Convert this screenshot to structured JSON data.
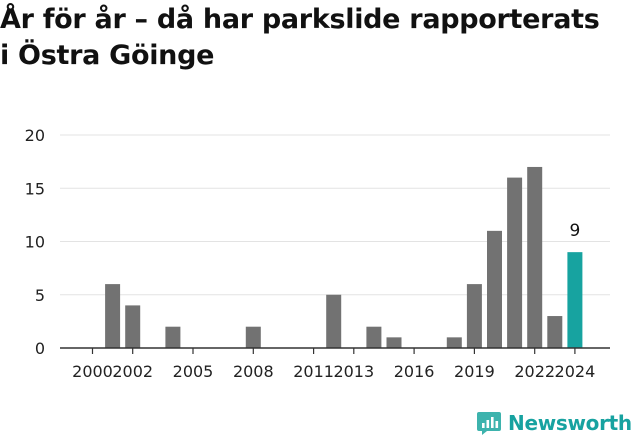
{
  "title_line1": "År för år – då har parkslide rapporterats",
  "title_line2": "i Östra Göinge",
  "brand": "Newsworthy",
  "colors": {
    "bar": "#727272",
    "highlight": "#17a3a0",
    "grid": "#e3e3e3",
    "axis": "#333333",
    "brand": "#17a2a0"
  },
  "chart_data": {
    "type": "bar",
    "x": [
      2000,
      2001,
      2002,
      2003,
      2004,
      2005,
      2006,
      2007,
      2008,
      2009,
      2010,
      2011,
      2012,
      2013,
      2014,
      2015,
      2016,
      2017,
      2018,
      2019,
      2020,
      2021,
      2022,
      2023,
      2024
    ],
    "values": [
      0,
      6,
      4,
      0,
      2,
      0,
      0,
      0,
      2,
      0,
      0,
      0,
      5,
      0,
      2,
      1,
      0,
      0,
      1,
      6,
      11,
      16,
      17,
      3,
      9
    ],
    "highlight": {
      "x": 2024,
      "value": 9,
      "label": "9"
    },
    "xticks": [
      "2000",
      "2002",
      "2005",
      "2008",
      "2011",
      "2013",
      "2016",
      "2019",
      "2022",
      "2024"
    ],
    "yticks": [
      "0",
      "5",
      "10",
      "15",
      "20"
    ],
    "ylim": [
      0,
      20
    ],
    "grid": true
  }
}
